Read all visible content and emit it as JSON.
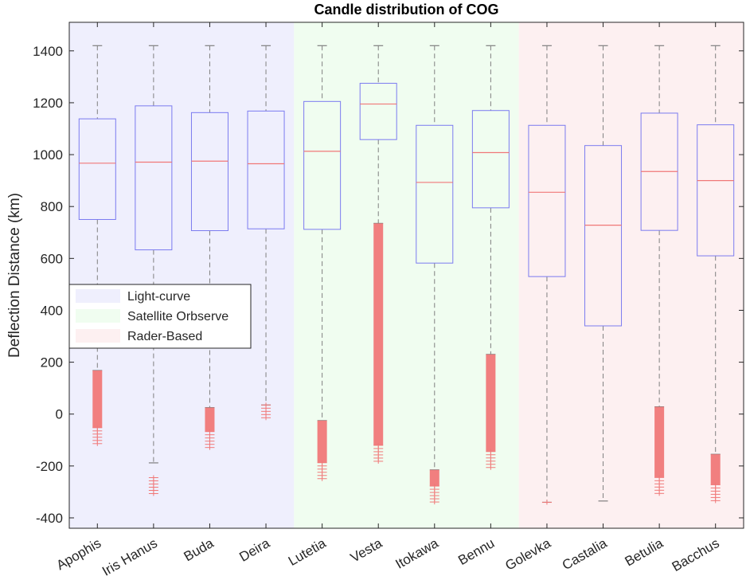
{
  "chart_data": {
    "type": "box",
    "title": "Candle distribution of COG",
    "ylabel": "Deflection Distance (km)",
    "xlabel": "",
    "ylim": [
      -440,
      1510
    ],
    "yticks": [
      -400,
      -200,
      0,
      200,
      400,
      600,
      800,
      1000,
      1200,
      1400
    ],
    "categories": [
      "Apophis",
      "Iris Hanus",
      "Buda",
      "Deira",
      "Lutetia",
      "Vesta",
      "Itokawa",
      "Bennu",
      "Golevka",
      "Castalia",
      "Betulia",
      "Bacchus"
    ],
    "groups": [
      {
        "name": "Light-curve",
        "color": "#efeffd",
        "categories": [
          "Apophis",
          "Iris Hanus",
          "Buda",
          "Deira"
        ]
      },
      {
        "name": "Satellite Orbserve",
        "color": "#f0fdf0",
        "categories": [
          "Lutetia",
          "Vesta",
          "Itokawa",
          "Bennu"
        ]
      },
      {
        "name": "Rader-Based",
        "color": "#fdf0f1",
        "categories": [
          "Golevka",
          "Castalia",
          "Betulia",
          "Bacchus"
        ]
      }
    ],
    "boxes": [
      {
        "category": "Apophis",
        "whisker_high": 1420,
        "q3": 1138,
        "median": 967,
        "q1": 750,
        "whisker_low": 168,
        "outlier_band": [
          -120,
          168
        ]
      },
      {
        "category": "Iris Hanus",
        "whisker_high": 1420,
        "q3": 1188,
        "median": 971,
        "q1": 633,
        "whisker_low": -188,
        "outlier_band": [
          -312,
          -245
        ]
      },
      {
        "category": "Buda",
        "whisker_high": 1420,
        "q3": 1162,
        "median": 975,
        "q1": 707,
        "whisker_low": 25,
        "outlier_band": [
          -135,
          25
        ]
      },
      {
        "category": "Deira",
        "whisker_high": 1420,
        "q3": 1168,
        "median": 965,
        "q1": 714,
        "whisker_low": 35,
        "outlier_band": [
          -25,
          35
        ]
      },
      {
        "category": "Lutetia",
        "whisker_high": 1420,
        "q3": 1205,
        "median": 1013,
        "q1": 712,
        "whisker_low": -25,
        "outlier_band": [
          -255,
          -25
        ]
      },
      {
        "category": "Vesta",
        "whisker_high": 1420,
        "q3": 1275,
        "median": 1195,
        "q1": 1058,
        "whisker_low": 735,
        "outlier_band": [
          -188,
          735
        ]
      },
      {
        "category": "Itokawa",
        "whisker_high": 1420,
        "q3": 1113,
        "median": 893,
        "q1": 582,
        "whisker_low": -215,
        "outlier_band": [
          -345,
          -215
        ]
      },
      {
        "category": "Bennu",
        "whisker_high": 1420,
        "q3": 1170,
        "median": 1008,
        "q1": 795,
        "whisker_low": 230,
        "outlier_band": [
          -212,
          230
        ]
      },
      {
        "category": "Golevka",
        "whisker_high": 1420,
        "q3": 1113,
        "median": 855,
        "q1": 530,
        "whisker_low": -340,
        "outlier_band": [
          -352,
          -340
        ]
      },
      {
        "category": "Castalia",
        "whisker_high": 1420,
        "q3": 1035,
        "median": 728,
        "q1": 340,
        "whisker_low": -335,
        "outlier_band": null
      },
      {
        "category": "Betulia",
        "whisker_high": 1420,
        "q3": 1160,
        "median": 935,
        "q1": 708,
        "whisker_low": 28,
        "outlier_band": [
          -312,
          28
        ]
      },
      {
        "category": "Bacchus",
        "whisker_high": 1420,
        "q3": 1115,
        "median": 900,
        "q1": 610,
        "whisker_low": -155,
        "outlier_band": [
          -340,
          -155
        ]
      }
    ],
    "box_color": "#7b7bf0",
    "median_color": "#f07878",
    "whisker_color": "#7f7f7f",
    "outlier_color": "#f07878",
    "grid": false,
    "legend_position": "left-middle"
  }
}
